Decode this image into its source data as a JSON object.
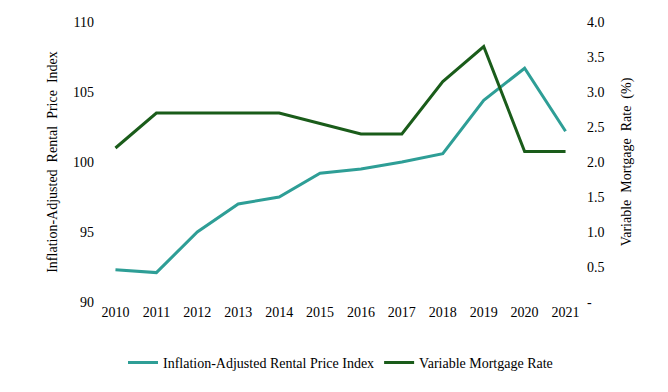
{
  "chart_data": {
    "type": "line",
    "categories": [
      "2010",
      "2011",
      "2012",
      "2013",
      "2014",
      "2015",
      "2016",
      "2017",
      "2018",
      "2019",
      "2020",
      "2021"
    ],
    "y_label": "Inflation-Adjusted  Rental  Price  Index",
    "y2_label": "Variable  Mortgage  Rate  (%)",
    "ylim": [
      90,
      110
    ],
    "yticks": [
      90,
      95,
      100,
      105,
      110
    ],
    "y2lim": [
      0,
      4
    ],
    "y2ticks": [
      {
        "value": 0,
        "label": "-"
      },
      0.5,
      {
        "value": 1,
        "label": "1.0"
      },
      1.5,
      {
        "value": 2,
        "label": "2.0"
      },
      2.5,
      {
        "value": 3,
        "label": "3.0"
      },
      3.5,
      {
        "value": 4,
        "label": "4.0"
      }
    ],
    "grid": false,
    "legend": "bottom",
    "series": [
      {
        "name": "Inflation-Adjusted Rental Price Index",
        "color": "#2e9e96",
        "values": [
          92.3,
          92.1,
          95.0,
          97.0,
          97.5,
          99.2,
          99.5,
          100.0,
          100.6,
          104.4,
          106.7,
          102.2
        ]
      },
      {
        "name": "Variable Mortgage Rate",
        "color": "#1a5c1a",
        "axis": "y2",
        "values": [
          2.2,
          2.7,
          2.7,
          2.7,
          2.7,
          2.55,
          2.4,
          2.4,
          3.15,
          3.65,
          2.15,
          2.15
        ]
      }
    ]
  }
}
